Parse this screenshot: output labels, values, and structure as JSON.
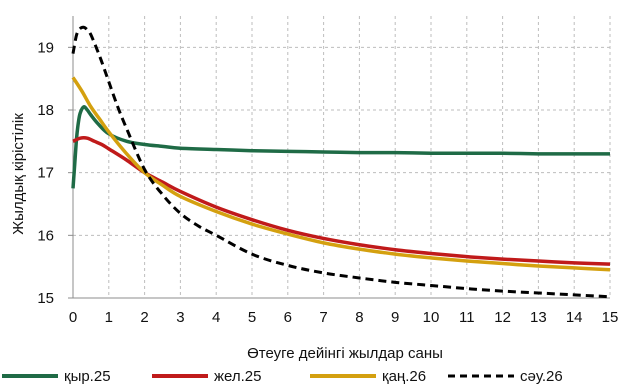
{
  "chart_data": {
    "type": "line",
    "xlabel": "Өтеуге дейінгі жылдар саны",
    "ylabel": "Жылдық кірістілік",
    "xlim": [
      0,
      15
    ],
    "ylim": [
      15,
      19.5
    ],
    "x_ticks": [
      "0",
      "1",
      "2",
      "3",
      "4",
      "5",
      "6",
      "7",
      "8",
      "9",
      "10",
      "11",
      "12",
      "13",
      "14",
      "15"
    ],
    "y_ticks": [
      "15",
      "16",
      "17",
      "18",
      "19"
    ],
    "grid": "dashed",
    "legend_position": "bottom",
    "series": [
      {
        "name": "қыр.25",
        "color": "#1f6b46",
        "dash": "solid",
        "x": [
          0,
          0.05,
          0.1,
          0.15,
          0.2,
          0.3,
          0.4,
          0.5,
          0.7,
          1,
          1.5,
          2,
          2.5,
          3,
          4,
          5,
          6,
          7,
          8,
          9,
          10,
          11,
          12,
          13,
          14,
          15
        ],
        "y": [
          16.75,
          17.15,
          17.55,
          17.8,
          17.95,
          18.05,
          18.0,
          17.92,
          17.78,
          17.62,
          17.5,
          17.45,
          17.42,
          17.39,
          17.37,
          17.35,
          17.34,
          17.33,
          17.32,
          17.32,
          17.31,
          17.31,
          17.31,
          17.3,
          17.3,
          17.3
        ]
      },
      {
        "name": "жел.25",
        "color": "#c01a1a",
        "dash": "solid",
        "x": [
          0,
          0.2,
          0.4,
          0.6,
          0.8,
          1,
          1.5,
          2,
          2.5,
          3,
          4,
          5,
          6,
          7,
          8,
          9,
          10,
          11,
          12,
          13,
          14,
          15
        ],
        "y": [
          17.5,
          17.55,
          17.55,
          17.5,
          17.45,
          17.38,
          17.2,
          17.0,
          16.85,
          16.7,
          16.45,
          16.25,
          16.08,
          15.95,
          15.85,
          15.77,
          15.71,
          15.66,
          15.62,
          15.59,
          15.56,
          15.54
        ]
      },
      {
        "name": "қаң.26",
        "color": "#d4a00f",
        "dash": "solid",
        "x": [
          0,
          0.25,
          0.5,
          0.75,
          1,
          1.5,
          2,
          2.5,
          3,
          4,
          5,
          6,
          7,
          8,
          9,
          10,
          11,
          12,
          13,
          14,
          15
        ],
        "y": [
          18.52,
          18.3,
          18.05,
          17.85,
          17.65,
          17.3,
          17.0,
          16.8,
          16.62,
          16.38,
          16.18,
          16.02,
          15.88,
          15.78,
          15.7,
          15.64,
          15.59,
          15.55,
          15.51,
          15.48,
          15.45
        ]
      },
      {
        "name": "сәу.26",
        "color": "#000000",
        "dash": "dashed",
        "x": [
          0,
          0.1,
          0.2,
          0.3,
          0.4,
          0.5,
          0.75,
          1,
          1.25,
          1.5,
          2,
          2.5,
          3,
          3.5,
          4,
          5,
          6,
          7,
          8,
          9,
          10,
          11,
          12,
          13,
          14,
          15
        ],
        "y": [
          18.9,
          19.2,
          19.3,
          19.32,
          19.28,
          19.2,
          18.85,
          18.45,
          18.05,
          17.7,
          17.05,
          16.65,
          16.35,
          16.15,
          16.0,
          15.7,
          15.52,
          15.4,
          15.32,
          15.25,
          15.2,
          15.15,
          15.11,
          15.08,
          15.05,
          15.02
        ]
      }
    ]
  }
}
